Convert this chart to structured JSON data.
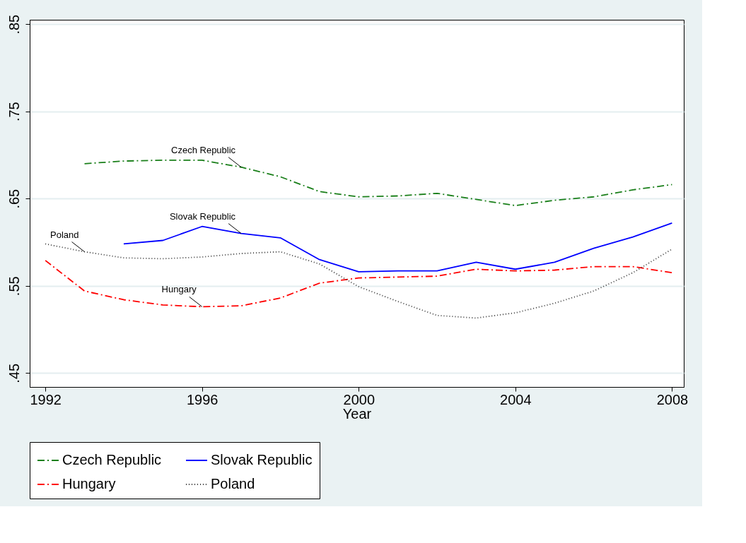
{
  "chart_data": {
    "type": "line",
    "xlabel": "Year",
    "x": [
      1992,
      1993,
      1994,
      1995,
      1996,
      1997,
      1998,
      1999,
      2000,
      2001,
      2002,
      2003,
      2004,
      2005,
      2006,
      2007,
      2008
    ],
    "series": [
      {
        "name": "Czech Republic",
        "color": "#1a7f1a",
        "line_style": "dashed",
        "values": [
          null,
          0.69,
          0.693,
          0.694,
          0.694,
          0.686,
          0.675,
          0.658,
          0.652,
          0.653,
          0.656,
          0.649,
          0.642,
          0.648,
          0.652,
          0.66,
          0.666
        ]
      },
      {
        "name": "Slovak Republic",
        "color": "#0000ff",
        "line_style": "solid",
        "values": [
          null,
          null,
          0.598,
          0.602,
          0.618,
          0.61,
          0.605,
          0.58,
          0.566,
          0.567,
          0.567,
          0.577,
          0.569,
          0.577,
          0.593,
          0.606,
          0.622
        ]
      },
      {
        "name": "Hungary",
        "color": "#ff0000",
        "line_style": "dashed",
        "values": [
          0.579,
          0.544,
          0.534,
          0.528,
          0.526,
          0.527,
          0.536,
          0.553,
          0.559,
          0.56,
          0.561,
          0.569,
          0.567,
          0.568,
          0.572,
          0.572,
          0.565
        ]
      },
      {
        "name": "Poland",
        "color": "#333333",
        "line_style": "dotted",
        "values": [
          0.598,
          0.589,
          0.582,
          0.581,
          0.583,
          0.587,
          0.589,
          0.575,
          0.549,
          0.532,
          0.516,
          0.513,
          0.519,
          0.53,
          0.544,
          0.565,
          0.592
        ]
      }
    ],
    "xlim": [
      1991.6,
      2008.3
    ],
    "xticks": [
      1992,
      1996,
      2000,
      2004,
      2008
    ],
    "ylim": [
      0.434,
      0.855
    ],
    "yticks": [
      {
        "value": 0.45,
        "label": ".45"
      },
      {
        "value": 0.55,
        "label": ".55"
      },
      {
        "value": 0.65,
        "label": ".65"
      },
      {
        "value": 0.75,
        "label": ".75"
      },
      {
        "value": 0.85,
        "label": ".85"
      }
    ],
    "grid": "y",
    "legend": "bottom",
    "marker": "none",
    "annotations": [
      {
        "text": "Czech Republic",
        "x": 1997,
        "y": 0.686
      },
      {
        "text": "Slovak Republic",
        "x": 1997,
        "y": 0.61
      },
      {
        "text": "Poland",
        "x": 1993,
        "y": 0.589
      },
      {
        "text": "Hungary",
        "x": 1996,
        "y": 0.526
      }
    ]
  }
}
